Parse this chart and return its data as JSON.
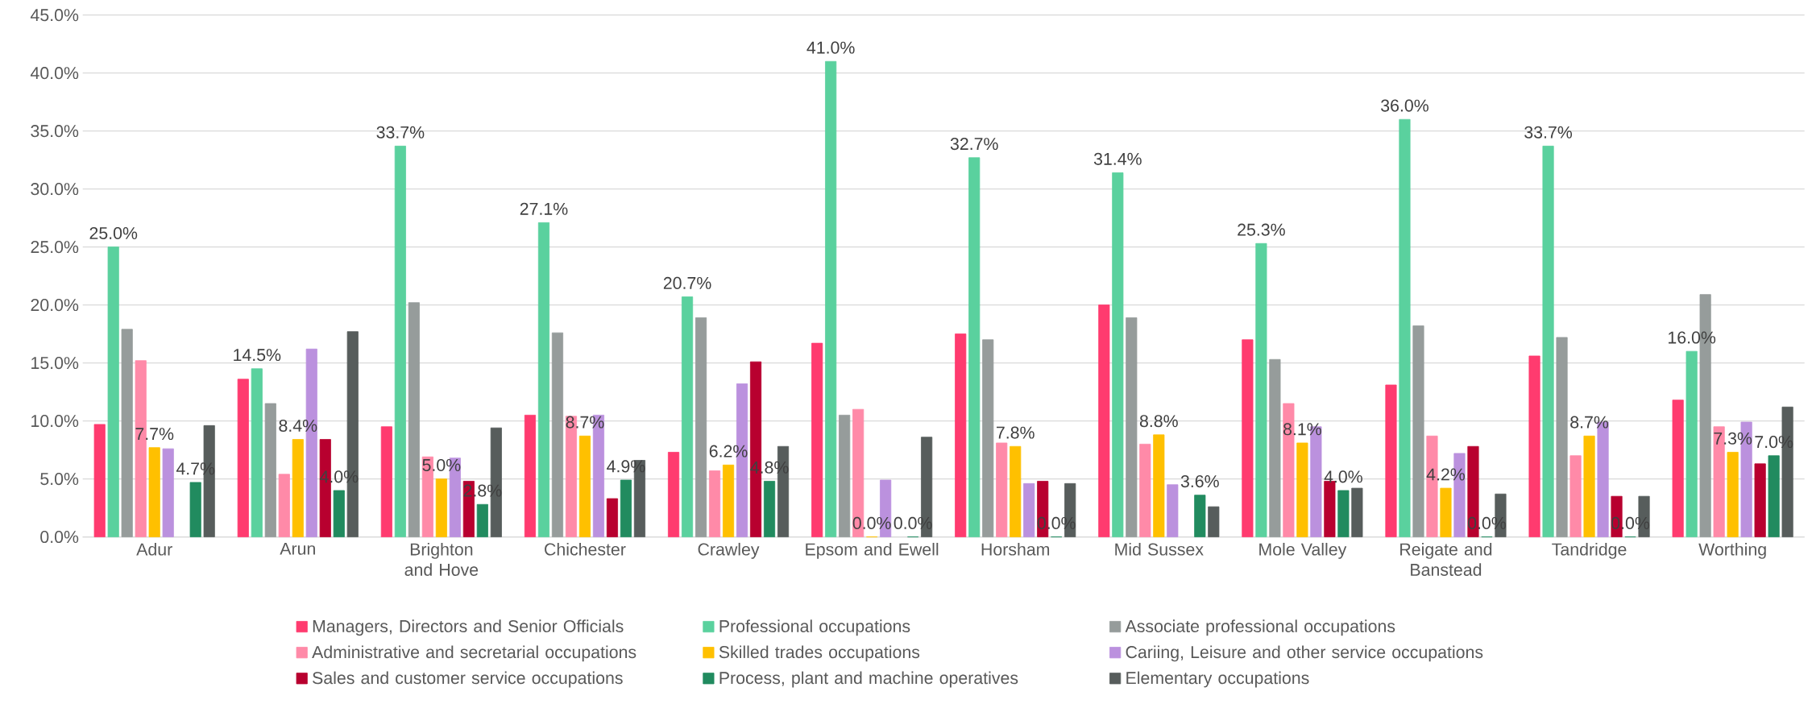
{
  "chart_data": {
    "type": "bar",
    "categories": [
      "Adur",
      "Arun",
      "Brighton and Hove",
      "Chichester",
      "Crawley",
      "Epsom and Ewell",
      "Horsham",
      "Mid Sussex",
      "Mole Valley",
      "Reigate and Banstead",
      "Tandridge",
      "Worthing"
    ],
    "series": [
      {
        "name": "Managers, Directors and Senior Officials",
        "color": "#ff3b6f",
        "values": [
          9.7,
          13.6,
          9.5,
          10.5,
          7.3,
          16.7,
          17.5,
          20.0,
          17.0,
          13.1,
          15.6,
          11.8
        ]
      },
      {
        "name": "Professional occupations",
        "color": "#5ad19e",
        "values": [
          25.0,
          14.5,
          33.7,
          27.1,
          20.7,
          41.0,
          32.7,
          31.4,
          25.3,
          36.0,
          33.7,
          16.0
        ],
        "value_labels": [
          "25.0%",
          "14.5%",
          "33.7%",
          "27.1%",
          "20.7%",
          "41.0%",
          "32.7%",
          "31.4%",
          "25.3%",
          "36.0%",
          "33.7%",
          "16.0%"
        ]
      },
      {
        "name": "Associate professional occupations",
        "color": "#969c9b",
        "values": [
          17.9,
          11.5,
          20.2,
          17.6,
          18.9,
          10.5,
          17.0,
          18.9,
          15.3,
          18.2,
          17.2,
          20.9
        ]
      },
      {
        "name": "Administrative and secretarial occupations",
        "color": "#ff8aa8",
        "values": [
          15.2,
          5.4,
          6.9,
          10.4,
          5.7,
          11.0,
          8.1,
          8.0,
          11.5,
          8.7,
          7.0,
          9.5
        ]
      },
      {
        "name": "Skilled trades occupations",
        "color": "#ffc000",
        "values": [
          7.7,
          8.4,
          5.0,
          8.7,
          6.2,
          0.0,
          7.8,
          8.8,
          8.1,
          4.2,
          8.7,
          7.3
        ],
        "value_labels": [
          "7.7%",
          "8.4%",
          "5.0%",
          "8.7%",
          "6.2%",
          "0.0%",
          "7.8%",
          "8.8%",
          "8.1%",
          "4.2%",
          "8.7%",
          "7.3%"
        ]
      },
      {
        "name": "Cariing, Leisure and other service occupations",
        "color": "#bb91de",
        "values": [
          7.6,
          16.2,
          6.8,
          10.5,
          13.2,
          4.9,
          4.6,
          4.5,
          9.5,
          7.2,
          9.9,
          9.9
        ]
      },
      {
        "name": "Sales and customer service occupations",
        "color": "#b8002f",
        "values": [
          null,
          8.4,
          4.8,
          3.3,
          15.1,
          null,
          4.8,
          null,
          4.8,
          7.8,
          3.5,
          6.3
        ]
      },
      {
        "name": "Process, plant and machine operatives",
        "color": "#218b5f",
        "values": [
          4.7,
          4.0,
          2.8,
          4.9,
          4.8,
          0.0,
          0.0,
          3.6,
          4.0,
          0.0,
          0.0,
          7.0
        ],
        "value_labels": [
          "4.7%",
          "4.0%",
          "2.8%",
          "4.9%",
          "4.8%",
          "0.0%",
          "0.0%",
          "3.6%",
          "4.0%",
          "0.0%",
          "0.0%",
          "7.0%"
        ]
      },
      {
        "name": "Elementary occupations",
        "color": "#575d5c",
        "values": [
          9.6,
          17.7,
          9.4,
          6.6,
          7.8,
          8.6,
          4.6,
          2.6,
          4.2,
          3.7,
          3.5,
          11.2
        ]
      }
    ],
    "ylim": [
      0,
      45
    ],
    "yticks": [
      {
        "value": 0,
        "label": "0.0%"
      },
      {
        "value": 5,
        "label": "5.0%"
      },
      {
        "value": 10,
        "label": "10.0%"
      },
      {
        "value": 15,
        "label": "15.0%"
      },
      {
        "value": 20,
        "label": "20.0%"
      },
      {
        "value": 25,
        "label": "25.0%"
      },
      {
        "value": 30,
        "label": "30.0%"
      },
      {
        "value": 35,
        "label": "35.0%"
      },
      {
        "value": 40,
        "label": "40.0%"
      },
      {
        "value": 45,
        "label": "45.0%"
      }
    ],
    "grid": "y",
    "legend": "bottom"
  }
}
